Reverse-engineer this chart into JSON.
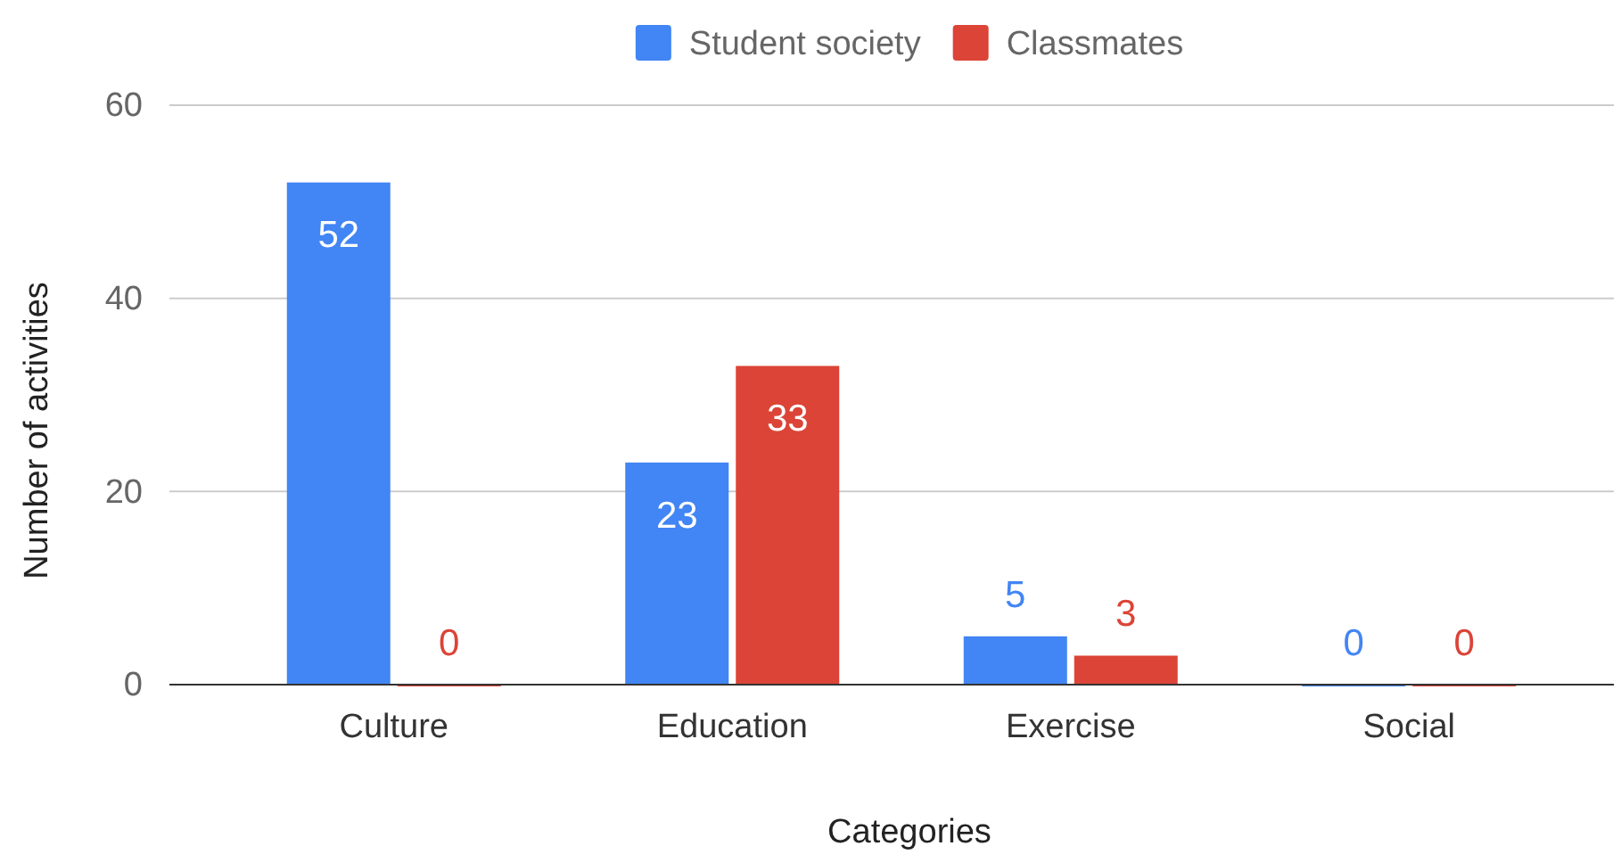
{
  "chart_data": {
    "type": "bar",
    "xlabel": "Categories",
    "ylabel": "Number of activities",
    "categories": [
      "Culture",
      "Education",
      "Exercise",
      "Social"
    ],
    "series": [
      {
        "name": "Student society",
        "color": "#4285f4",
        "values": [
          52,
          23,
          5,
          0
        ]
      },
      {
        "name": "Classmates",
        "color": "#db4437",
        "values": [
          0,
          33,
          3,
          0
        ]
      }
    ],
    "ylim": [
      0,
      60
    ],
    "yticks": [
      0,
      20,
      40,
      60
    ],
    "grid": "y",
    "legend": "top",
    "data_labels": true
  }
}
